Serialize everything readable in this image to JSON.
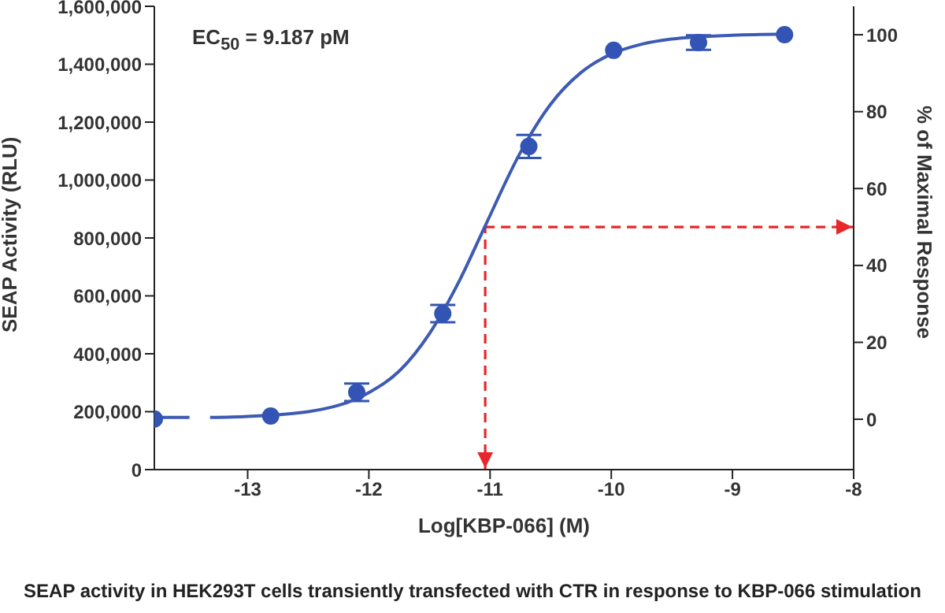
{
  "chart_data": {
    "type": "scatter",
    "xlabel": "Log[KBP-066] (M)",
    "ylabel": "SEAP Activity (RLU)",
    "y2label": "% of Maximal Response",
    "xlim": [
      -13.77,
      -8
    ],
    "xticks": [
      -13,
      -12,
      -11,
      -10,
      -9,
      -8
    ],
    "ylim": [
      0,
      1600000
    ],
    "yticks": [
      0,
      {
        "value": 200000,
        "label": "200,000"
      },
      {
        "value": 400000,
        "label": "400,000"
      },
      {
        "value": 600000,
        "label": "600,000"
      },
      {
        "value": 800000,
        "label": "800,000"
      },
      {
        "value": 1000000,
        "label": "1,000,000"
      },
      {
        "value": 1200000,
        "label": "1,200,000"
      },
      {
        "value": 1400000,
        "label": "1,400,000"
      },
      {
        "value": 1600000,
        "label": "1,600,000"
      }
    ],
    "y2lim": [
      -13.1,
      107.4
    ],
    "y2ticks": [
      0,
      20,
      40,
      60,
      80,
      100
    ],
    "marker": "circle",
    "series": [
      {
        "color": "#3354b5",
        "x": [
          -13.77,
          -12.81,
          -12.1,
          -11.39,
          -10.68,
          -9.98,
          -9.28,
          -8.57
        ],
        "values": [
          175000,
          185000,
          267000,
          539000,
          1116000,
          1448000,
          1475000,
          1502000
        ],
        "errors": [
          null,
          null,
          30000,
          30000,
          40000,
          null,
          25000,
          null
        ]
      },
      {
        "type": "line",
        "color": "#3d5bb3",
        "marker": "none",
        "x": [
          -13.77,
          -13.48,
          -13.4,
          -13.31,
          -13.0,
          -12.5,
          -12.0,
          -11.75,
          -11.5,
          -11.25,
          -11.04,
          -10.75,
          -10.5,
          -10.25,
          -10.0,
          -9.75,
          -9.5,
          -9.0,
          -8.57
        ],
        "values": [
          180000,
          180000,
          null,
          180000,
          184000,
          200000,
          266000,
          340000,
          470000,
          655000,
          842000,
          1095000,
          1262000,
          1371000,
          1435000,
          1469000,
          1487000,
          1500000,
          1504000
        ]
      }
    ],
    "ref_lines": [
      {
        "axis": "x",
        "value": -11.04,
        "color": "#e8262b",
        "line_style": "dashed"
      },
      {
        "axis": "y2",
        "value": 50,
        "color": "#e8262b",
        "line_style": "dashed"
      }
    ],
    "annotations": [
      "EC$_{50}$ = 9.187 pM",
      "SEAP activity in HEK293T cells transiently transfected with CTR in response to KBP-066 stimulation"
    ]
  }
}
